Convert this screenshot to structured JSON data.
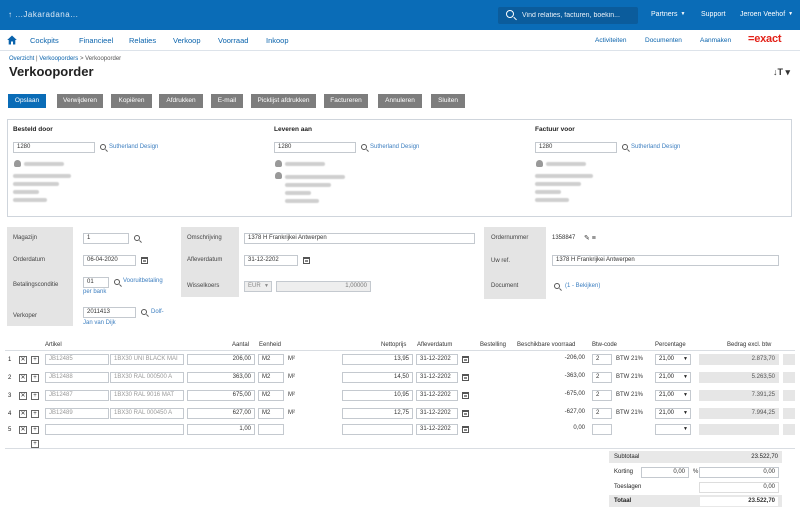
{
  "topbar": {
    "app_name": "↑ ...Jakaradana...",
    "search_placeholder": "Vind relaties, facturen, boekin...",
    "partners": "Partners",
    "support": "Support",
    "user": "Jeroen Veehof"
  },
  "menu": {
    "items": [
      "Cockpits",
      "Financieel",
      "Relaties",
      "Verkoop",
      "Voorraad",
      "Inkoop"
    ],
    "right": [
      "Activiteiten",
      "Documenten",
      "Aanmaken"
    ],
    "logo": "=exact"
  },
  "breadcrumb": {
    "part1": "Overzicht",
    "sep1": " | ",
    "part2": "Verkooporders",
    "sep2": " > ",
    "current": "Verkooporder"
  },
  "page_title": "Verkooporder",
  "toolbar": {
    "buttons": [
      "Opslaan",
      "Verwijderen",
      "Kopiëren",
      "Afdrukken",
      "E-mail",
      "Picklijst afdrukken",
      "Factureren",
      "Annuleren",
      "Sluiten"
    ]
  },
  "addresses": {
    "besteld_door": {
      "title": "Besteld door",
      "code": "1280",
      "link": "Sutherland Design"
    },
    "leveren_aan": {
      "title": "Leveren aan",
      "code": "1280",
      "link": "Sutherland Design"
    },
    "factuur_voor": {
      "title": "Factuur voor",
      "code": "1280",
      "link": "Sutherland Design"
    }
  },
  "form": {
    "magazijn_label": "Magazijn",
    "magazijn_value": "1",
    "orderdatum_label": "Orderdatum",
    "orderdatum_value": "06-04-2020",
    "betalingscond_label": "Betalingsconditie",
    "betalingscond_value": "01",
    "betalingscond_link1": "Vooruitbetaling",
    "betalingscond_link2": "per bank",
    "verkoper_label": "Verkoper",
    "verkoper_value": "2011413",
    "verkoper_link1": "Dolf-",
    "verkoper_link2": "Jan van Dijk",
    "omschrijving_label": "Omschrijving",
    "omschrijving_value": "1378 H Frankrijkei Antwerpen",
    "afleverdatum_label": "Afleverdatum",
    "afleverdatum_value": "31-12-2202",
    "wisselkoers_label": "Wisselkoers",
    "wisselkoers_currency": "EUR",
    "wisselkoers_value": "1,00000",
    "ordernummer_label": "Ordernummer",
    "ordernummer_value": "1358847",
    "uw_ref_label": "Uw ref.",
    "uw_ref_value": "1378 H Frankrijkei Antwerpen",
    "document_label": "Document",
    "document_link": "(1 - Bekijken)"
  },
  "table": {
    "headers": [
      "Artikel",
      "Aantal",
      "Eenheid",
      "Nettoprijs",
      "Afleverdatum",
      "Bestelling",
      "Beschikbare voorraad",
      "Btw-code",
      "Percentage",
      "Bedrag excl. btw"
    ],
    "rows": [
      {
        "n": "1",
        "code": "JB12485",
        "desc": "1BX30 UNI BLACK MAI",
        "qty": "206,00",
        "unit": "M2",
        "sq": "M²",
        "price": "13,95",
        "date": "31-12-2202",
        "stock": "-206,00",
        "vat": "2",
        "vatname": "BTW 21%",
        "pct": "21,00",
        "amount": "2.873,70"
      },
      {
        "n": "2",
        "code": "JB12488",
        "desc": "1BX30 RAL 000500 A",
        "qty": "363,00",
        "unit": "M2",
        "sq": "M²",
        "price": "14,50",
        "date": "31-12-2202",
        "stock": "-363,00",
        "vat": "2",
        "vatname": "BTW 21%",
        "pct": "21,00",
        "amount": "5.263,50"
      },
      {
        "n": "3",
        "code": "JB12487",
        "desc": "1BX30 RAL 9016 MAT",
        "qty": "675,00",
        "unit": "M2",
        "sq": "M²",
        "price": "10,95",
        "date": "31-12-2202",
        "stock": "-675,00",
        "vat": "2",
        "vatname": "BTW 21%",
        "pct": "21,00",
        "amount": "7.391,25"
      },
      {
        "n": "4",
        "code": "JB12489",
        "desc": "1BX30 RAL 000450 A",
        "qty": "627,00",
        "unit": "M2",
        "sq": "M²",
        "price": "12,75",
        "date": "31-12-2202",
        "stock": "-627,00",
        "vat": "2",
        "vatname": "BTW 21%",
        "pct": "21,00",
        "amount": "7.994,25"
      },
      {
        "n": "5",
        "code": "",
        "desc": "",
        "qty": "1,00",
        "unit": "",
        "sq": "",
        "price": "",
        "date": "31-12-2202",
        "stock": "0,00",
        "vat": "",
        "vatname": "",
        "pct": "",
        "amount": ""
      }
    ]
  },
  "totals": {
    "subtotaal_label": "Subtotaal",
    "subtotaal_value": "23.522,70",
    "korting_label": "Korting",
    "korting_pct": "0,00",
    "korting_pct_sign": "%",
    "korting_value": "0,00",
    "toeslagen_label": "Toeslagen",
    "toeslagen_value": "0,00",
    "totaal_label": "Totaal",
    "totaal_value": "23.522,70"
  },
  "colors": {
    "brand_blue": "#0a6cb7",
    "exact_red": "#e32219",
    "button_grey": "#7d7d7d"
  }
}
